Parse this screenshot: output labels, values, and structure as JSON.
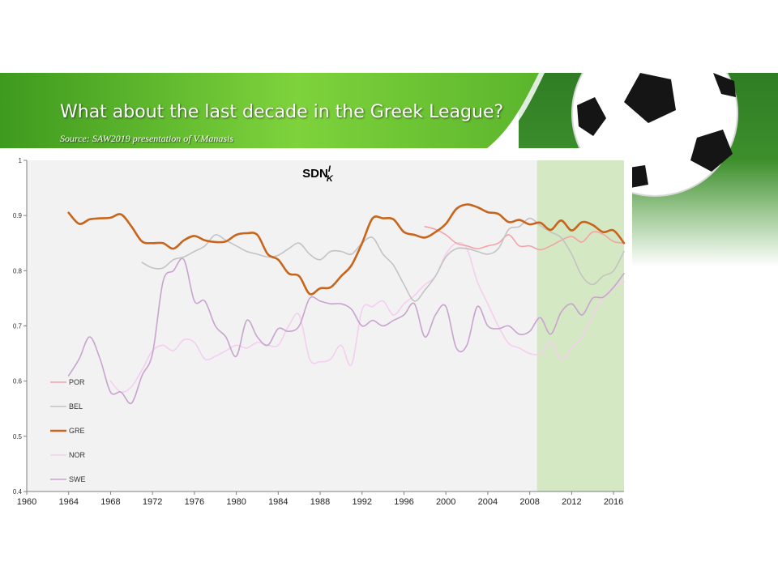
{
  "slide": {
    "title": "What about the last decade in the Greek League?",
    "source": "Source: SAW2019 presentation of V.Manasis"
  },
  "colors": {
    "banner_green": "#5bb52c",
    "highlight_band": "#d5e8c4",
    "plot_bg": "#f2f2f2"
  },
  "chart_data": {
    "type": "line",
    "title": "SDN",
    "title_superscript": "I",
    "title_subscript": "K",
    "xlim": [
      1960,
      2017
    ],
    "ylim": [
      0.4,
      1.0
    ],
    "x_ticks": [
      "1960",
      "1964",
      "1968",
      "1972",
      "1976",
      "1980",
      "1984",
      "1988",
      "1992",
      "1996",
      "2000",
      "2004",
      "2008",
      "2012",
      "2016"
    ],
    "y_ticks": [
      "0.4",
      "0.5",
      "0.6",
      "0.7",
      "0.8",
      "0.9",
      "1"
    ],
    "highlight_range": [
      2008.7,
      2017
    ],
    "legend_position": "bottom-left",
    "series": [
      {
        "name": "POR",
        "color": "#f2a3a8",
        "width": 1.6,
        "x": [
          1998,
          1999,
          2000,
          2001,
          2002,
          2003,
          2004,
          2005,
          2006,
          2007,
          2008,
          2009,
          2010,
          2011,
          2012,
          2013,
          2014,
          2015,
          2016,
          2017
        ],
        "y": [
          0.88,
          0.875,
          0.865,
          0.85,
          0.845,
          0.84,
          0.845,
          0.85,
          0.865,
          0.845,
          0.845,
          0.838,
          0.845,
          0.855,
          0.862,
          0.852,
          0.87,
          0.866,
          0.853,
          0.85
        ]
      },
      {
        "name": "BEL",
        "color": "#c3c3c3",
        "width": 1.6,
        "x": [
          1971,
          1972,
          1973,
          1974,
          1975,
          1976,
          1977,
          1978,
          1979,
          1980,
          1981,
          1982,
          1983,
          1984,
          1985,
          1986,
          1987,
          1988,
          1989,
          1990,
          1991,
          1992,
          1993,
          1994,
          1995,
          1996,
          1997,
          1998,
          1999,
          2000,
          2001,
          2002,
          2003,
          2004,
          2005,
          2006,
          2007,
          2008,
          2009,
          2010,
          2011,
          2012,
          2013,
          2014,
          2015,
          2016,
          2017
        ],
        "y": [
          0.815,
          0.805,
          0.805,
          0.82,
          0.825,
          0.835,
          0.845,
          0.865,
          0.855,
          0.845,
          0.835,
          0.83,
          0.825,
          0.828,
          0.84,
          0.85,
          0.83,
          0.82,
          0.835,
          0.835,
          0.83,
          0.85,
          0.86,
          0.83,
          0.81,
          0.775,
          0.745,
          0.765,
          0.79,
          0.825,
          0.84,
          0.84,
          0.835,
          0.83,
          0.84,
          0.875,
          0.88,
          0.895,
          0.882,
          0.87,
          0.86,
          0.83,
          0.79,
          0.775,
          0.79,
          0.8,
          0.835
        ]
      },
      {
        "name": "GRE",
        "color": "#c8651b",
        "width": 2.6,
        "x": [
          1964,
          1965,
          1966,
          1967,
          1968,
          1969,
          1970,
          1971,
          1972,
          1973,
          1974,
          1975,
          1976,
          1977,
          1978,
          1979,
          1980,
          1981,
          1982,
          1983,
          1984,
          1985,
          1986,
          1987,
          1988,
          1989,
          1990,
          1991,
          1992,
          1993,
          1994,
          1995,
          1996,
          1997,
          1998,
          1999,
          2000,
          2001,
          2002,
          2003,
          2004,
          2005,
          2006,
          2007,
          2008,
          2009,
          2010,
          2011,
          2012,
          2013,
          2014,
          2015,
          2016,
          2017
        ],
        "y": [
          0.905,
          0.885,
          0.893,
          0.895,
          0.896,
          0.902,
          0.88,
          0.853,
          0.85,
          0.85,
          0.84,
          0.855,
          0.863,
          0.855,
          0.852,
          0.853,
          0.865,
          0.868,
          0.865,
          0.83,
          0.82,
          0.795,
          0.79,
          0.758,
          0.768,
          0.77,
          0.79,
          0.81,
          0.85,
          0.895,
          0.895,
          0.893,
          0.87,
          0.865,
          0.86,
          0.87,
          0.885,
          0.912,
          0.92,
          0.915,
          0.906,
          0.903,
          0.888,
          0.892,
          0.884,
          0.887,
          0.874,
          0.891,
          0.873,
          0.888,
          0.883,
          0.87,
          0.873,
          0.85
        ]
      },
      {
        "name": "NOR",
        "color": "#f5cef0",
        "width": 1.6,
        "x": [
          1968,
          1969,
          1970,
          1971,
          1972,
          1973,
          1974,
          1975,
          1976,
          1977,
          1978,
          1979,
          1980,
          1981,
          1982,
          1983,
          1984,
          1985,
          1986,
          1987,
          1988,
          1989,
          1990,
          1991,
          1992,
          1993,
          1994,
          1995,
          1996,
          1997,
          1998,
          1999,
          2000,
          2001,
          2002,
          2003,
          2004,
          2005,
          2006,
          2007,
          2008,
          2009,
          2010,
          2011,
          2012,
          2013,
          2014,
          2015,
          2016,
          2017
        ],
        "y": [
          0.6,
          0.58,
          0.59,
          0.62,
          0.655,
          0.665,
          0.655,
          0.675,
          0.67,
          0.64,
          0.645,
          0.655,
          0.665,
          0.66,
          0.67,
          0.665,
          0.665,
          0.7,
          0.72,
          0.64,
          0.635,
          0.64,
          0.665,
          0.63,
          0.73,
          0.735,
          0.745,
          0.72,
          0.74,
          0.755,
          0.775,
          0.79,
          0.83,
          0.85,
          0.84,
          0.78,
          0.74,
          0.7,
          0.668,
          0.66,
          0.65,
          0.65,
          0.67,
          0.64,
          0.66,
          0.68,
          0.72,
          0.75,
          0.77,
          0.78
        ]
      },
      {
        "name": "SWE",
        "color": "#c9a3cf",
        "width": 1.6,
        "x": [
          1964,
          1965,
          1966,
          1967,
          1968,
          1969,
          1970,
          1971,
          1972,
          1973,
          1974,
          1975,
          1976,
          1977,
          1978,
          1979,
          1980,
          1981,
          1982,
          1983,
          1984,
          1985,
          1986,
          1987,
          1988,
          1989,
          1990,
          1991,
          1992,
          1993,
          1994,
          1995,
          1996,
          1997,
          1998,
          1999,
          2000,
          2001,
          2002,
          2003,
          2004,
          2005,
          2006,
          2007,
          2008,
          2009,
          2010,
          2011,
          2012,
          2013,
          2014,
          2015,
          2016,
          2017
        ],
        "y": [
          0.61,
          0.64,
          0.68,
          0.64,
          0.58,
          0.58,
          0.56,
          0.61,
          0.65,
          0.78,
          0.8,
          0.82,
          0.745,
          0.745,
          0.7,
          0.68,
          0.645,
          0.71,
          0.68,
          0.665,
          0.695,
          0.69,
          0.7,
          0.75,
          0.745,
          0.74,
          0.74,
          0.73,
          0.7,
          0.71,
          0.7,
          0.71,
          0.72,
          0.74,
          0.68,
          0.72,
          0.735,
          0.66,
          0.665,
          0.735,
          0.7,
          0.695,
          0.7,
          0.685,
          0.69,
          0.715,
          0.685,
          0.725,
          0.74,
          0.72,
          0.75,
          0.752,
          0.77,
          0.795
        ]
      }
    ]
  }
}
